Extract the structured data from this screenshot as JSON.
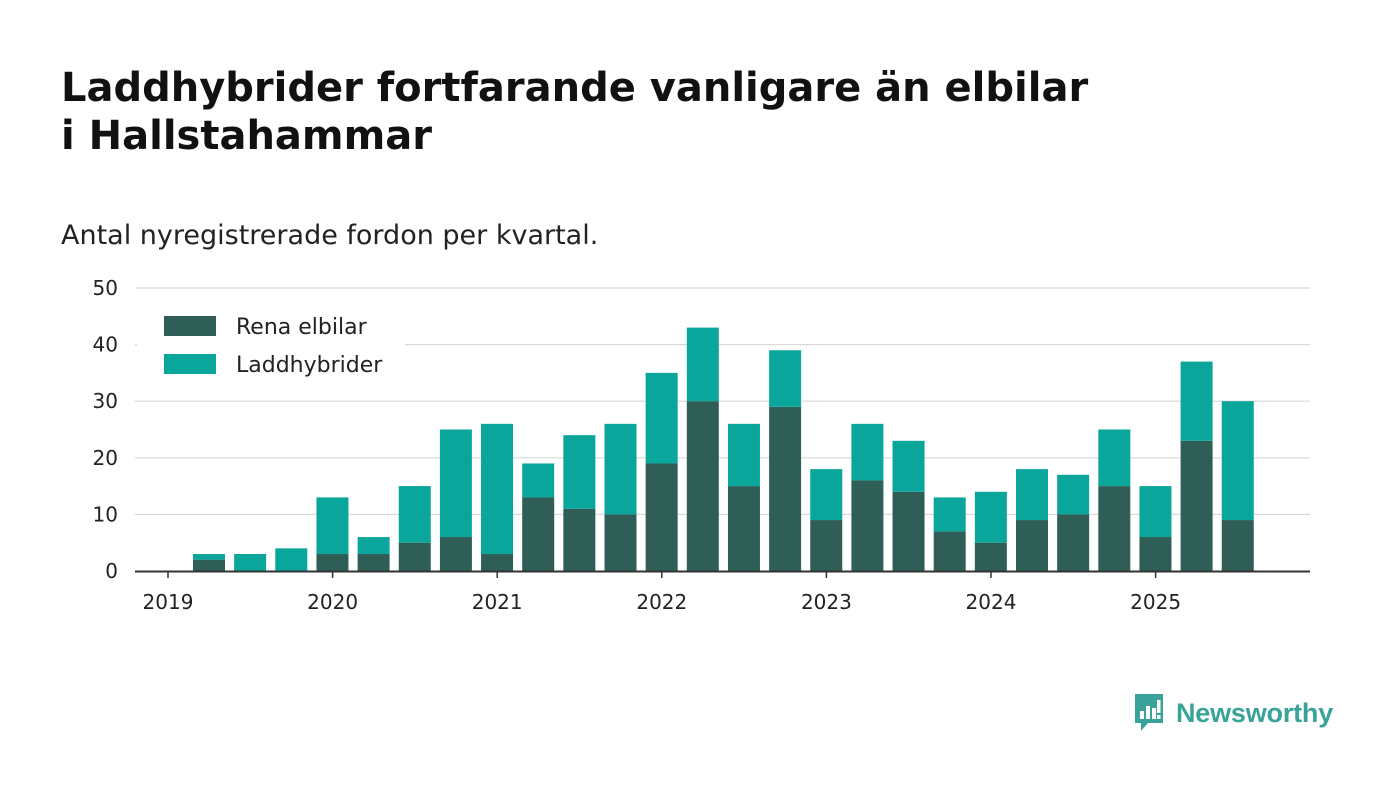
{
  "title": "Laddhybrider fortfarande vanligare än elbilar i Hallstahammar",
  "subtitle": "Antal nyregistrerade fordon per kvartal.",
  "brand": {
    "name": "Newsworthy",
    "color": "#3aa399"
  },
  "colors": {
    "elbilar": "#2f5e56",
    "laddhybrider": "#0aa59b",
    "grid": "#d9d9d9",
    "axis": "#333333"
  },
  "chart_data": {
    "type": "bar",
    "stacked": true,
    "title": "Laddhybrider fortfarande vanligare än elbilar i Hallstahammar",
    "subtitle": "Antal nyregistrerade fordon per kvartal.",
    "xlabel": "",
    "ylabel": "",
    "ylim": [
      0,
      50
    ],
    "yticks": [
      0,
      10,
      20,
      30,
      40,
      50
    ],
    "xticks": [
      "2019",
      "2020",
      "2021",
      "2022",
      "2023",
      "2024",
      "2025"
    ],
    "legend_position": "top-left",
    "categories": [
      "2019-Q2",
      "2019-Q3",
      "2019-Q4",
      "2020-Q1",
      "2020-Q2",
      "2020-Q3",
      "2020-Q4",
      "2021-Q1",
      "2021-Q2",
      "2021-Q3",
      "2021-Q4",
      "2022-Q1",
      "2022-Q2",
      "2022-Q3",
      "2022-Q4",
      "2023-Q1",
      "2023-Q2",
      "2023-Q3",
      "2023-Q4",
      "2024-Q1",
      "2024-Q2",
      "2024-Q3",
      "2024-Q4",
      "2025-Q1",
      "2025-Q2",
      "2025-Q3"
    ],
    "series": [
      {
        "name": "Rena elbilar",
        "values": [
          2,
          0,
          0,
          3,
          3,
          5,
          6,
          3,
          13,
          11,
          10,
          19,
          30,
          15,
          29,
          9,
          16,
          14,
          7,
          5,
          9,
          10,
          15,
          6,
          23,
          9
        ]
      },
      {
        "name": "Laddhybrider",
        "values": [
          1,
          3,
          4,
          10,
          3,
          10,
          19,
          23,
          6,
          13,
          16,
          16,
          13,
          11,
          10,
          9,
          10,
          9,
          6,
          9,
          9,
          7,
          10,
          9,
          14,
          21
        ]
      }
    ]
  }
}
